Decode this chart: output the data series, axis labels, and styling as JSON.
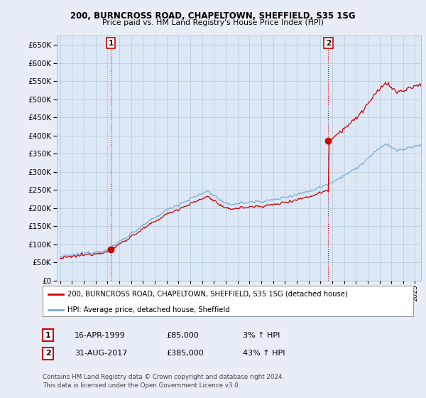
{
  "title1": "200, BURNCROSS ROAD, CHAPELTOWN, SHEFFIELD, S35 1SG",
  "title2": "Price paid vs. HM Land Registry's House Price Index (HPI)",
  "ylim": [
    0,
    675000
  ],
  "yticks": [
    0,
    50000,
    100000,
    150000,
    200000,
    250000,
    300000,
    350000,
    400000,
    450000,
    500000,
    550000,
    600000,
    650000
  ],
  "xlim_start": 1994.7,
  "xlim_end": 2025.5,
  "sale1_x": 1999.29,
  "sale1_y": 85000,
  "sale2_x": 2017.67,
  "sale2_y": 385000,
  "marker_color": "#cc0000",
  "hpi_color": "#7aadda",
  "price_color": "#cc0000",
  "legend_label1": "200, BURNCROSS ROAD, CHAPELTOWN, SHEFFIELD, S35 1SG (detached house)",
  "legend_label2": "HPI: Average price, detached house, Sheffield",
  "table_row1": [
    "1",
    "16-APR-1999",
    "£85,000",
    "3% ↑ HPI"
  ],
  "table_row2": [
    "2",
    "31-AUG-2017",
    "£385,000",
    "43% ↑ HPI"
  ],
  "footer": "Contains HM Land Registry data © Crown copyright and database right 2024.\nThis data is licensed under the Open Government Licence v3.0.",
  "background_color": "#e8eef8",
  "plot_bg_color": "#dce8f5",
  "grid_color": "#b8c8d8"
}
